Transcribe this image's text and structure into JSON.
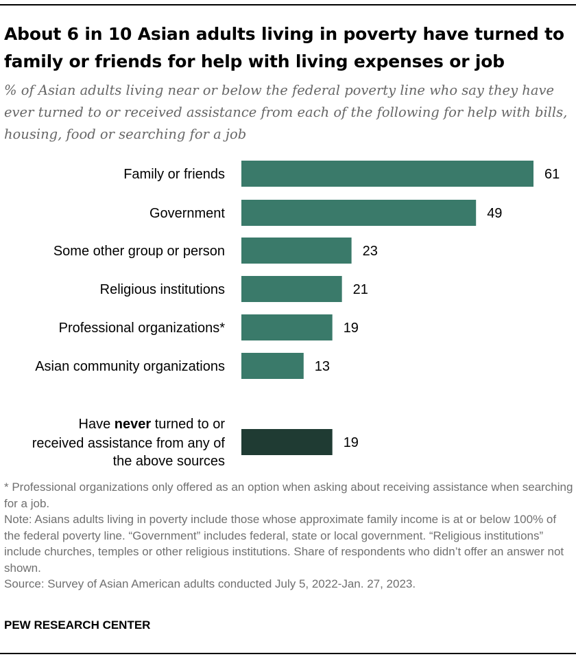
{
  "title": "About 6 in 10 Asian adults living in poverty have turned to family or friends for help with living expenses or job",
  "subtitle": "% of Asian adults living near or below the federal poverty line who say they have ever turned to or received assistance from each of the following for help with bills, housing, food or searching for a job",
  "chart_data": {
    "type": "bar",
    "orientation": "horizontal",
    "categories": [
      "Family or friends",
      "Government",
      "Some other group or person",
      "Religious institutions",
      "Professional organizations*",
      "Asian community organizations"
    ],
    "values": [
      61,
      49,
      23,
      21,
      19,
      13
    ],
    "bar_color": "#3a7a6a",
    "summary_bar": {
      "label_lines": [
        "Have ",
        "never",
        " turned to or",
        "received assistance from any of",
        "the above sources"
      ],
      "value": 19,
      "bar_color": "#1f3b33"
    },
    "xlim": [
      0,
      61
    ],
    "grid": false,
    "value_labels": true
  },
  "footnote": "* Professional organizations only offered as an option when asking about receiving assistance when searching for a job.",
  "note": "Note: Asians adults living in poverty include those whose approximate family income is at or below 100% of the federal poverty line. “Government” includes federal, state or local government. “Religious institutions” include churches, temples or other religious institutions. Share of respondents who didn’t offer an answer not shown.",
  "source": "Source: Survey of Asian American adults conducted July 5, 2022-Jan. 27, 2023.",
  "brand": "PEW RESEARCH CENTER"
}
